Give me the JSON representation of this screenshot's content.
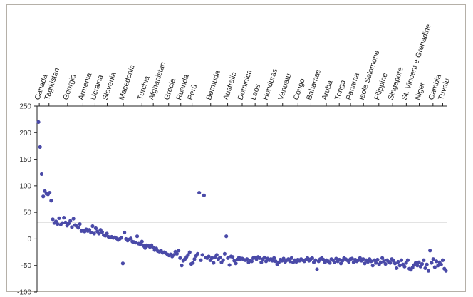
{
  "chart_data": {
    "type": "scatter",
    "title": "",
    "xlabel": "",
    "ylabel": "",
    "ylim": [
      -100,
      250
    ],
    "yticks": [
      250,
      200,
      150,
      100,
      50,
      0,
      -50,
      -100
    ],
    "grid": false,
    "legend": "none",
    "reference_line_y": 32,
    "point_color": "#4a4aa8",
    "categories": [
      "Canada",
      "Tagikistan",
      "Georgia",
      "Armenia",
      "Ucraina",
      "Slovenia",
      "Macedonia",
      "Turchia",
      "Afghanistan",
      "Grecia",
      "Ruanda",
      "Perù",
      "Bermuda",
      "Australia",
      "Dominica",
      "Laos",
      "Honduras",
      "Vanuatu",
      "Congo",
      "Bahamas",
      "Aruba",
      "Tonga",
      "Panama",
      "Isole Salomone",
      "Filippine",
      "Singapore",
      "St. Vincent e Grenadine",
      "Niger",
      "Gambia",
      "Tuvalu"
    ],
    "category_positions": [
      0.5,
      6.5,
      18,
      27.5,
      35,
      42.5,
      52.5,
      64,
      71,
      80.5,
      88,
      95,
      106.5,
      117,
      126,
      134,
      141.5,
      151,
      160.5,
      168.5,
      178,
      186,
      193,
      201,
      210.5,
      219,
      227.5,
      235.5,
      244,
      250
    ],
    "x_range": [
      0,
      252
    ],
    "values": [
      220,
      173,
      122,
      80,
      90,
      85,
      84,
      87,
      72,
      37,
      30,
      33,
      28,
      39,
      27,
      30,
      40,
      31,
      25,
      29,
      34,
      22,
      38,
      26,
      24,
      21,
      28,
      15,
      16,
      14,
      18,
      15,
      17,
      12,
      24,
      10,
      20,
      14,
      10,
      17,
      13,
      7,
      6,
      10,
      4,
      3,
      4,
      2,
      3,
      1,
      -2,
      0,
      2,
      -46,
      12,
      0,
      -3,
      -1,
      1,
      -5,
      -6,
      -7,
      5,
      -9,
      -10,
      -5,
      -13,
      -17,
      -12,
      -13,
      -15,
      -12,
      -16,
      -21,
      -18,
      -23,
      -24,
      -22,
      -26,
      -25,
      -27,
      -29,
      -31,
      -29,
      -33,
      -30,
      -24,
      -28,
      -22,
      -36,
      -50,
      -41,
      -38,
      -34,
      -30,
      -25,
      -47,
      -45,
      -38,
      -32,
      -28,
      87,
      -40,
      -30,
      82,
      -35,
      -36,
      -33,
      -40,
      -36,
      -45,
      -34,
      -30,
      -38,
      -35,
      -44,
      -40,
      -28,
      5,
      -36,
      -49,
      -33,
      -34,
      -41,
      -46,
      -39,
      -35,
      -38,
      -37,
      -39,
      -40,
      -38,
      -44,
      -41,
      -42,
      -36,
      -35,
      -38,
      -34,
      -36,
      -44,
      -38,
      -35,
      -42,
      -37,
      -40,
      -38,
      -41,
      -36,
      -42,
      -48,
      -44,
      -39,
      -41,
      -37,
      -43,
      -40,
      -38,
      -42,
      -36,
      -44,
      -40,
      -43,
      -39,
      -41,
      -38,
      -40,
      -42,
      -39,
      -36,
      -41,
      -38,
      -36,
      -44,
      -40,
      -57,
      -42,
      -38,
      -36,
      -39,
      -44,
      -40,
      -42,
      -45,
      -38,
      -40,
      -44,
      -37,
      -42,
      -39,
      -46,
      -41,
      -36,
      -38,
      -40,
      -43,
      -38,
      -37,
      -44,
      -39,
      -42,
      -40,
      -36,
      -41,
      -38,
      -46,
      -40,
      -43,
      -38,
      -42,
      -50,
      -40,
      -45,
      -39,
      -48,
      -44,
      -36,
      -42,
      -47,
      -40,
      -43,
      -45,
      -38,
      -41,
      -46,
      -55,
      -43,
      -50,
      -40,
      -48,
      -52,
      -45,
      -40,
      -56,
      -58,
      -54,
      -49,
      -45,
      -50,
      -44,
      -52,
      -47,
      -40,
      -55,
      -48,
      -60,
      -22,
      -45,
      -38,
      -53,
      -42,
      -50,
      -44,
      -48,
      -40,
      -56,
      -60
    ]
  }
}
